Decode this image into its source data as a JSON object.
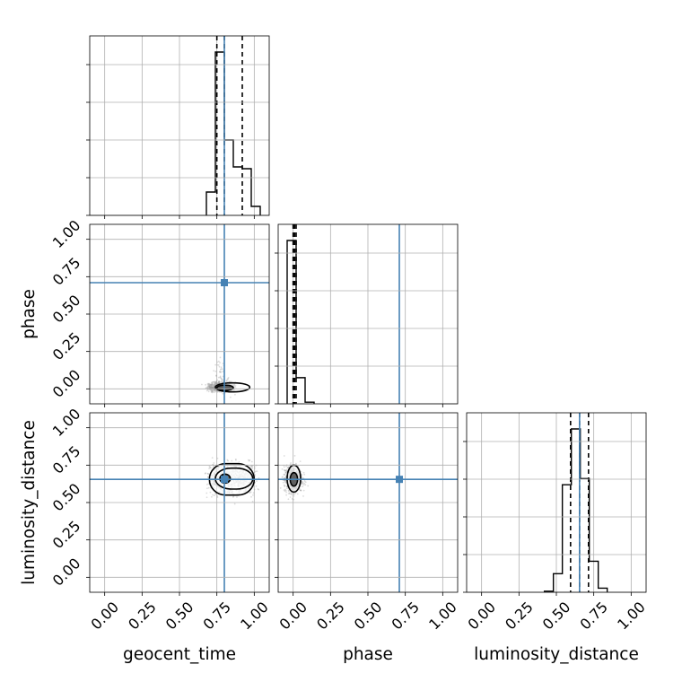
{
  "chart_data": {
    "type": "corner",
    "parameters": [
      "geocent_time",
      "phase",
      "luminosity_distance"
    ],
    "axis_range": [
      -0.1,
      1.1
    ],
    "tick_values": [
      0.0,
      0.25,
      0.5,
      0.75,
      1.0
    ],
    "tick_labels": [
      "0.00",
      "0.25",
      "0.50",
      "0.75",
      "1.00"
    ],
    "grid": true,
    "colors": {
      "truth": "#4682b4",
      "hist": "#000000",
      "samples": "#9a9a9a",
      "grid": "#b0b0b0"
    },
    "truths": {
      "geocent_time": 0.8,
      "phase": 0.71,
      "luminosity_distance": 0.655
    },
    "histograms": [
      {
        "param": "geocent_time",
        "bin_edges": [
          0.68,
          0.74,
          0.8,
          0.86,
          0.92,
          0.98,
          1.04
        ],
        "counts": [
          0.13,
          0.91,
          0.42,
          0.27,
          0.26,
          0.05
        ],
        "quantiles": [
          0.75,
          0.8,
          0.92
        ]
      },
      {
        "param": "phase",
        "bin_edges": [
          -0.04,
          0.02,
          0.08,
          0.14
        ],
        "counts": [
          1.0,
          0.16,
          0.01
        ],
        "quantiles": [
          0.0,
          0.01,
          0.02
        ]
      },
      {
        "param": "luminosity_distance",
        "bin_edges": [
          0.42,
          0.48,
          0.54,
          0.6,
          0.66,
          0.72,
          0.78,
          0.84
        ],
        "counts": [
          0.005,
          0.09,
          0.52,
          0.79,
          0.55,
          0.15,
          0.02
        ],
        "quantiles": [
          0.595,
          0.655,
          0.715
        ]
      }
    ],
    "scatter_panels": [
      {
        "x": "geocent_time",
        "y": "phase",
        "cloud": {
          "x_range": [
            0.7,
            0.86
          ],
          "y_center": 0.01,
          "y_spread": 0.03,
          "tail": [
            0.02,
            0.24
          ]
        },
        "contours": [
          {
            "x_range": [
              0.74,
              0.97
            ],
            "y_range": [
              -0.02,
              0.04
            ]
          },
          {
            "x_range": [
              0.75,
              0.86
            ],
            "y_range": [
              -0.01,
              0.025
            ]
          }
        ]
      },
      {
        "x": "geocent_time",
        "y": "luminosity_distance",
        "cloud": {
          "x_range": [
            0.7,
            1.0
          ],
          "y_center": 0.655,
          "y_spread": 0.09
        },
        "contours": [
          {
            "x_range": [
              0.7,
              1.0
            ],
            "y_range": [
              0.55,
              0.76
            ]
          },
          {
            "x_range": [
              0.74,
              0.99
            ],
            "y_range": [
              0.59,
              0.73
            ]
          },
          {
            "x_range": [
              0.77,
              0.84
            ],
            "y_range": [
              0.63,
              0.69
            ]
          }
        ]
      },
      {
        "x": "phase",
        "y": "luminosity_distance",
        "cloud": {
          "x_center": 0.0,
          "x_spread": 0.05,
          "y_center": 0.655,
          "y_spread": 0.08
        },
        "contours": [
          {
            "x_range": [
              -0.04,
              0.05
            ],
            "y_range": [
              0.57,
              0.75
            ]
          },
          {
            "x_range": [
              -0.02,
              0.03
            ],
            "y_range": [
              0.61,
              0.7
            ]
          }
        ]
      }
    ]
  }
}
